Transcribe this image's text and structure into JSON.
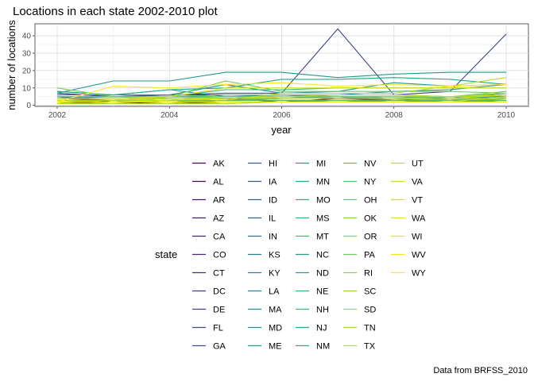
{
  "chart_data": {
    "type": "line",
    "title": "Locations in each state 2002-2010 plot",
    "xlabel": "year",
    "ylabel": "number of locations",
    "caption": "Data from BRFSS_2010",
    "xlim": [
      2002,
      2010
    ],
    "ylim": [
      0,
      45
    ],
    "x_ticks": [
      2002,
      2004,
      2006,
      2008,
      2010
    ],
    "y_ticks": [
      0,
      10,
      20,
      30,
      40
    ],
    "grid": true,
    "legend_title": "state",
    "legend_position": "bottom",
    "x": [
      2002,
      2003,
      2004,
      2005,
      2006,
      2007,
      2008,
      2009,
      2010
    ],
    "series": [
      {
        "name": "AK",
        "values": [
          5,
          2,
          3,
          4,
          2,
          4,
          3,
          3,
          2
        ],
        "color": "#440154"
      },
      {
        "name": "AL",
        "values": [
          1,
          1,
          2,
          2,
          2,
          2,
          3,
          3,
          3
        ],
        "color": "#450a5c"
      },
      {
        "name": "AR",
        "values": [
          1,
          2,
          2,
          3,
          3,
          3,
          3,
          2,
          3
        ],
        "color": "#471264"
      },
      {
        "name": "AZ",
        "values": [
          2,
          2,
          2,
          3,
          4,
          4,
          4,
          4,
          4
        ],
        "color": "#48186a"
      },
      {
        "name": "CA",
        "values": [
          1,
          1,
          1,
          2,
          2,
          3,
          3,
          3,
          4
        ],
        "color": "#482071"
      },
      {
        "name": "CO",
        "values": [
          4,
          3,
          4,
          4,
          4,
          5,
          5,
          4,
          7
        ],
        "color": "#472777"
      },
      {
        "name": "CT",
        "values": [
          7,
          5,
          6,
          6,
          6,
          5,
          4,
          5,
          5
        ],
        "color": "#462f7c"
      },
      {
        "name": "DC",
        "values": [
          1,
          1,
          1,
          2,
          2,
          2,
          2,
          2,
          2
        ],
        "color": "#443881"
      },
      {
        "name": "DE",
        "values": [
          3,
          3,
          3,
          3,
          3,
          3,
          3,
          3,
          3
        ],
        "color": "#413f85"
      },
      {
        "name": "FL",
        "values": [
          7,
          5,
          6,
          7,
          7,
          44,
          6,
          8,
          41
        ],
        "color": "#3e4788"
      },
      {
        "name": "GA",
        "values": [
          3,
          3,
          4,
          4,
          5,
          5,
          4,
          5,
          4
        ],
        "color": "#3b4f8b"
      },
      {
        "name": "HI",
        "values": [
          5,
          4,
          4,
          4,
          5,
          5,
          3,
          4,
          4
        ],
        "color": "#37568c"
      },
      {
        "name": "IA",
        "values": [
          2,
          2,
          3,
          3,
          3,
          3,
          2,
          2,
          2
        ],
        "color": "#345e8d"
      },
      {
        "name": "ID",
        "values": [
          1,
          2,
          2,
          3,
          3,
          3,
          3,
          2,
          3
        ],
        "color": "#31658e"
      },
      {
        "name": "IL",
        "values": [
          2,
          3,
          3,
          3,
          3,
          2,
          2,
          2,
          2
        ],
        "color": "#2d6c8e"
      },
      {
        "name": "IN",
        "values": [
          1,
          2,
          2,
          3,
          3,
          3,
          2,
          3,
          3
        ],
        "color": "#2a738e"
      },
      {
        "name": "KS",
        "values": [
          3,
          3,
          3,
          4,
          4,
          4,
          4,
          3,
          4
        ],
        "color": "#277a8e"
      },
      {
        "name": "KY",
        "values": [
          3,
          3,
          3,
          3,
          3,
          3,
          2,
          2,
          3
        ],
        "color": "#25818e"
      },
      {
        "name": "LA",
        "values": [
          3,
          3,
          3,
          3,
          4,
          4,
          4,
          5,
          5
        ],
        "color": "#22888d"
      },
      {
        "name": "MA",
        "values": [
          8,
          6,
          9,
          5,
          5,
          6,
          8,
          9,
          12
        ],
        "color": "#208f8c"
      },
      {
        "name": "MD",
        "values": [
          6,
          6,
          6,
          12,
          7,
          8,
          13,
          11,
          12
        ],
        "color": "#1f968b"
      },
      {
        "name": "ME",
        "values": [
          4,
          4,
          5,
          5,
          6,
          6,
          6,
          5,
          6
        ],
        "color": "#1e9d89"
      },
      {
        "name": "MI",
        "values": [
          4,
          4,
          4,
          4,
          4,
          5,
          4,
          3,
          4
        ],
        "color": "#20a386"
      },
      {
        "name": "MN",
        "values": [
          2,
          2,
          3,
          3,
          4,
          5,
          5,
          5,
          5
        ],
        "color": "#25aa82"
      },
      {
        "name": "MO",
        "values": [
          3,
          3,
          3,
          4,
          4,
          4,
          4,
          4,
          3
        ],
        "color": "#2db17e"
      },
      {
        "name": "MS",
        "values": [
          2,
          2,
          2,
          2,
          2,
          2,
          2,
          2,
          2
        ],
        "color": "#38b778"
      },
      {
        "name": "MT",
        "values": [
          1,
          1,
          1,
          1,
          2,
          2,
          2,
          2,
          2
        ],
        "color": "#44bd72"
      },
      {
        "name": "NC",
        "values": [
          7,
          14,
          14,
          19,
          19,
          16,
          18,
          19,
          19
        ],
        "color": "#23978a"
      },
      {
        "name": "ND",
        "values": [
          3,
          3,
          3,
          3,
          3,
          3,
          3,
          3,
          3
        ],
        "color": "#2a9f87"
      },
      {
        "name": "NE",
        "values": [
          2,
          2,
          5,
          9,
          9,
          10,
          10,
          10,
          10
        ],
        "color": "#35b779"
      },
      {
        "name": "NH",
        "values": [
          5,
          5,
          4,
          4,
          4,
          4,
          4,
          5,
          5
        ],
        "color": "#3dbb74"
      },
      {
        "name": "NJ",
        "values": [
          8,
          6,
          9,
          10,
          15,
          15,
          16,
          15,
          12
        ],
        "color": "#22a884"
      },
      {
        "name": "NM",
        "values": [
          3,
          3,
          3,
          3,
          3,
          3,
          3,
          3,
          6
        ],
        "color": "#29af7f"
      },
      {
        "name": "NV",
        "values": [
          2,
          2,
          2,
          2,
          2,
          2,
          2,
          2,
          2
        ],
        "color": "#53c568"
      },
      {
        "name": "NY",
        "values": [
          5,
          5,
          5,
          6,
          6,
          6,
          6,
          5,
          6
        ],
        "color": "#5ec962"
      },
      {
        "name": "OH",
        "values": [
          4,
          4,
          4,
          5,
          5,
          5,
          5,
          5,
          8
        ],
        "color": "#6ccd5a"
      },
      {
        "name": "OK",
        "values": [
          3,
          3,
          3,
          3,
          3,
          3,
          3,
          3,
          3
        ],
        "color": "#7ad151"
      },
      {
        "name": "OR",
        "values": [
          3,
          3,
          3,
          4,
          4,
          4,
          4,
          3,
          4
        ],
        "color": "#86d549"
      },
      {
        "name": "PA",
        "values": [
          10,
          5,
          5,
          14,
          8,
          8,
          8,
          8,
          7
        ],
        "color": "#6ece58"
      },
      {
        "name": "RI",
        "values": [
          2,
          2,
          2,
          2,
          2,
          2,
          2,
          2,
          5
        ],
        "color": "#8ad547"
      },
      {
        "name": "SC",
        "values": [
          3,
          3,
          4,
          4,
          5,
          5,
          5,
          5,
          7
        ],
        "color": "#95d840"
      },
      {
        "name": "SD",
        "values": [
          2,
          2,
          2,
          2,
          2,
          2,
          2,
          2,
          2
        ],
        "color": "#a0da39"
      },
      {
        "name": "TN",
        "values": [
          1,
          1,
          1,
          1,
          2,
          2,
          2,
          2,
          5
        ],
        "color": "#aadc32"
      },
      {
        "name": "TX",
        "values": [
          2,
          2,
          3,
          3,
          7,
          7,
          7,
          11,
          16
        ],
        "color": "#b5de2b"
      },
      {
        "name": "UT",
        "values": [
          3,
          3,
          4,
          4,
          5,
          6,
          6,
          5,
          6
        ],
        "color": "#bfdf25"
      },
      {
        "name": "VA",
        "values": [
          4,
          4,
          4,
          4,
          4,
          4,
          4,
          4,
          4
        ],
        "color": "#cae11f"
      },
      {
        "name": "VT",
        "values": [
          3,
          3,
          3,
          4,
          4,
          4,
          4,
          4,
          6
        ],
        "color": "#d4e21a"
      },
      {
        "name": "WA",
        "values": [
          4,
          4,
          5,
          10,
          10,
          10,
          10,
          10,
          10
        ],
        "color": "#dde318"
      },
      {
        "name": "WI",
        "values": [
          2,
          2,
          2,
          2,
          2,
          2,
          2,
          2,
          2
        ],
        "color": "#e7e419"
      },
      {
        "name": "WV",
        "values": [
          2,
          2,
          2,
          2,
          2,
          2,
          2,
          2,
          2
        ],
        "color": "#f0e51c"
      },
      {
        "name": "WY",
        "values": [
          2,
          11,
          10,
          12,
          13,
          11,
          12,
          11,
          12
        ],
        "color": "#fde725"
      }
    ]
  }
}
